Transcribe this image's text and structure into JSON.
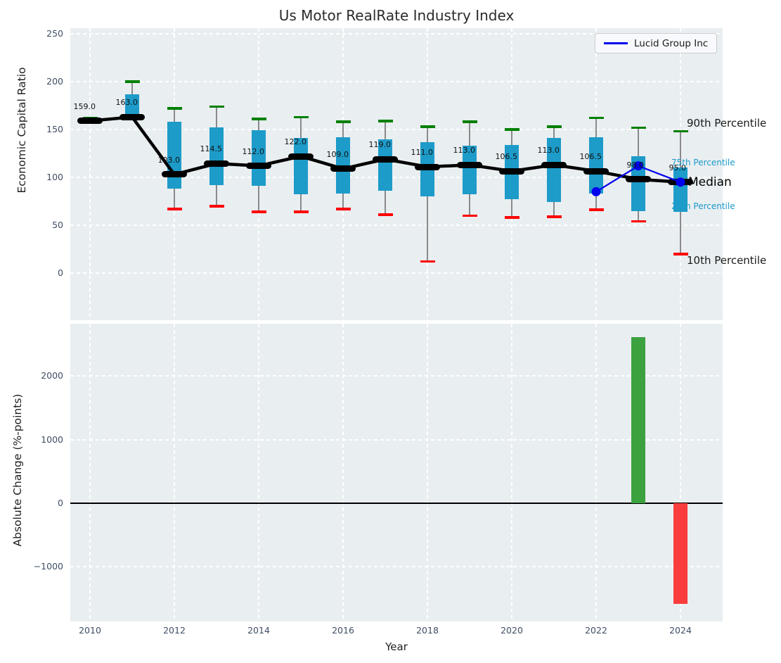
{
  "title": "Us Motor RealRate Industry Index",
  "legend": {
    "label": "Lucid Group Inc"
  },
  "annotations": {
    "p90": "90th Percentile",
    "p75": "75th Percentile",
    "median": "Median",
    "p25": "25th Percentile",
    "p10": "10th Percentile"
  },
  "chart_data": [
    {
      "type": "boxplot",
      "title": "Us Motor RealRate Industry Index",
      "xlabel": "Year",
      "ylabel": "Economic Capital Ratio",
      "ylim": [
        -50,
        256
      ],
      "yticks": [
        0,
        50,
        100,
        150,
        200,
        250
      ],
      "xticks": [
        2010,
        2012,
        2014,
        2016,
        2018,
        2020,
        2022,
        2024
      ],
      "grid": "white dashed on light gray",
      "legend_position": "upper right",
      "categories": [
        2010,
        2011,
        2012,
        2013,
        2014,
        2015,
        2016,
        2017,
        2018,
        2019,
        2020,
        2021,
        2022,
        2023,
        2024
      ],
      "series": [
        {
          "name": "90th Percentile",
          "values": [
            162,
            200,
            172,
            174,
            161,
            163,
            158,
            159,
            153,
            158,
            150,
            153,
            162,
            152,
            148
          ]
        },
        {
          "name": "75th Percentile",
          "values": [
            160,
            187,
            158,
            152,
            149,
            141,
            142,
            140,
            137,
            133,
            134,
            141,
            142,
            122,
            110
          ]
        },
        {
          "name": "Median",
          "values": [
            159,
            163,
            103,
            114.5,
            112,
            122,
            109,
            119,
            111,
            113,
            106.5,
            113,
            106.5,
            98,
            95
          ],
          "labels": [
            "159.0",
            "163.0",
            "103.0",
            "114.5",
            "112.0",
            "122.0",
            "109.0",
            "119.0",
            "111.0",
            "113.0",
            "106.5",
            "113.0",
            "106.5",
            "98.0",
            "95.0"
          ]
        },
        {
          "name": "25th Percentile",
          "values": [
            158,
            163,
            88,
            92,
            91,
            82,
            83,
            86,
            80,
            82,
            77,
            74,
            83,
            65,
            64
          ]
        },
        {
          "name": "10th Percentile",
          "values": [
            157,
            162,
            67,
            70,
            64,
            64,
            67,
            61,
            12,
            60,
            58,
            59,
            66,
            54,
            20
          ]
        },
        {
          "name": "Lucid Group Inc",
          "x": [
            2022,
            2023,
            2024
          ],
          "values": [
            85,
            112,
            95
          ],
          "color": "#0000ee"
        }
      ],
      "colors": {
        "box": "#1d9bc9",
        "cap_top": "#008000",
        "cap_bottom": "#ff0000",
        "median": "#000000",
        "whisker": "#8a8a8a"
      }
    },
    {
      "type": "bar",
      "xlabel": "Year",
      "ylabel": "Absolute Change (%-points)",
      "ylim": [
        -1860,
        2850
      ],
      "yticks": [
        -1000,
        0,
        1000,
        2000
      ],
      "ytick_labels": [
        "−1000",
        "0",
        "1000",
        "2000"
      ],
      "categories": [
        2023,
        2024
      ],
      "values": [
        2610,
        -1580
      ],
      "colors": {
        "positive": "#3ba23f",
        "negative": "#f93c3c"
      },
      "zero_line": true
    }
  ]
}
